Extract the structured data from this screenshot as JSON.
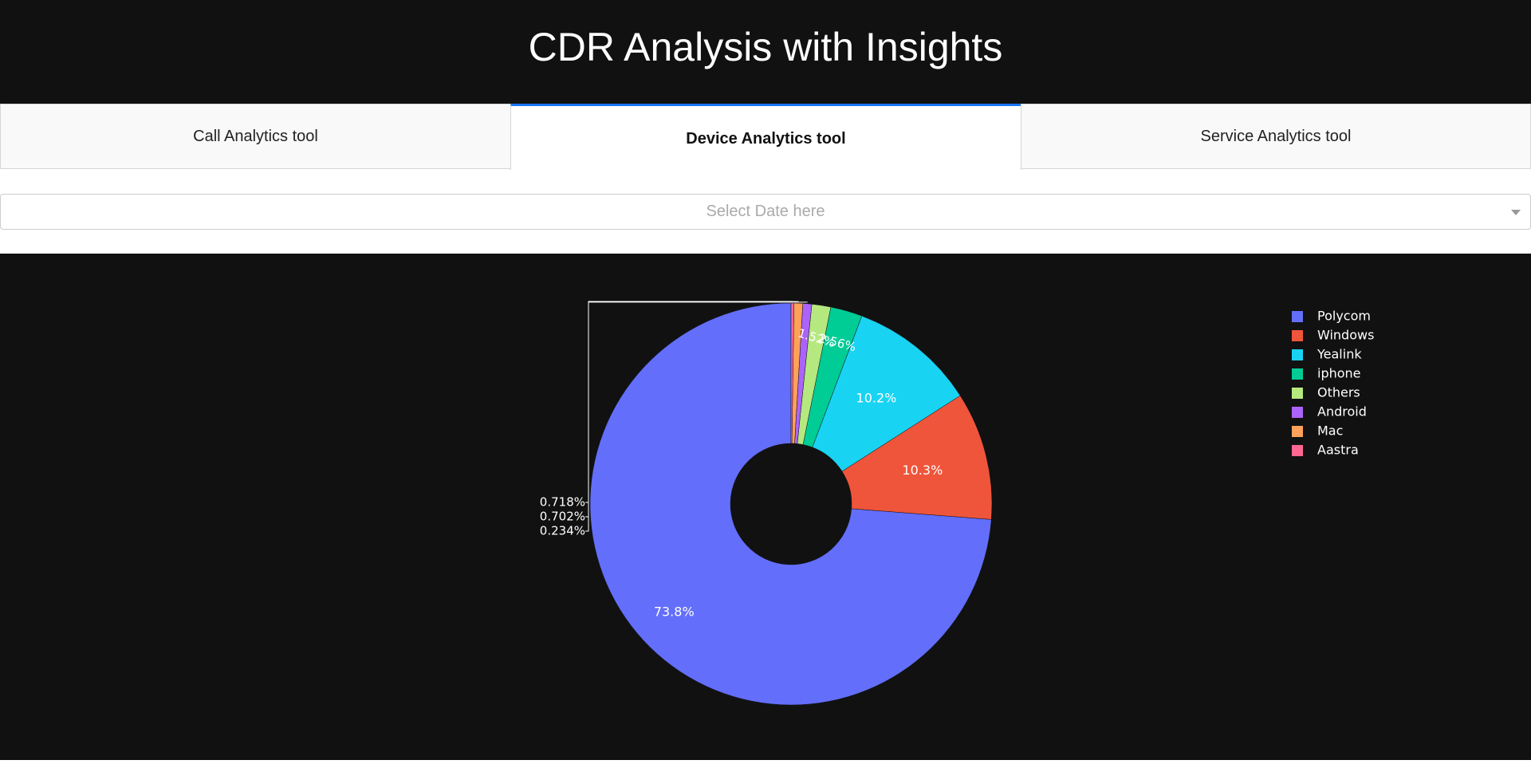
{
  "page": {
    "title": "CDR Analysis with Insights"
  },
  "tabs": [
    {
      "label": "Call Analytics tool",
      "active": false
    },
    {
      "label": "Device Analytics tool",
      "active": true
    },
    {
      "label": "Service Analytics tool",
      "active": false
    }
  ],
  "date_select": {
    "placeholder": "Select Date here"
  },
  "colors": {
    "page_background": "#111111",
    "active_tab_accent": "#1975fa"
  },
  "chart_data": {
    "type": "pie",
    "hole": true,
    "labels": [
      "Polycom",
      "Windows",
      "Yealink",
      "iphone",
      "Others",
      "Android",
      "Mac",
      "Aastra"
    ],
    "values": [
      73.8,
      10.3,
      10.2,
      2.56,
      1.52,
      0.718,
      0.702,
      0.234
    ],
    "text_labels": [
      "73.8%",
      "10.3%",
      "10.2%",
      "2.56%",
      "1.52%",
      "0.718%",
      "0.702%",
      "0.234%"
    ],
    "colors": [
      "#636efa",
      "#ef553b",
      "#19d3f3",
      "#00cc96",
      "#b6e880",
      "#ab63fa",
      "#ffa15a",
      "#ff6692"
    ],
    "legend_position": "top-right",
    "sort_direction": "counterclockwise"
  }
}
